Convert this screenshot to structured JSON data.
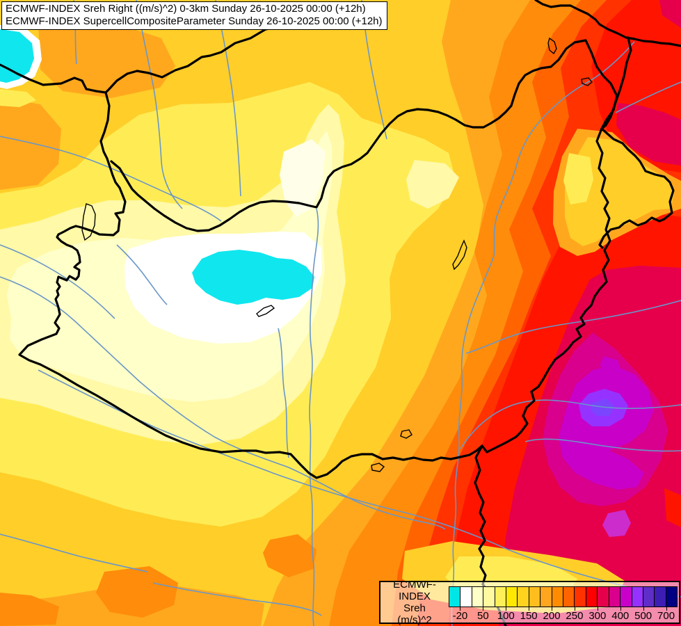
{
  "header": {
    "line1": "ECMWF-INDEX Sreh Right ((m/s)^2) 0-3km Sunday 26-10-2025 00:00 (+12h)",
    "line2": "ECMWF-INDEX SupercellCompositeParameter Sunday 26-10-2025 00:00 (+12h)"
  },
  "legend": {
    "title": "ECMWF-INDEX",
    "parameter": "Sreh",
    "units": "(m/s)^2",
    "tick_labels": [
      "-20",
      "50",
      "100",
      "150",
      "200",
      "250",
      "300",
      "400",
      "500",
      "700"
    ],
    "swatch_colors": [
      "#00E6E6",
      "#FFFFFF",
      "#FFFFC8",
      "#FFF9A0",
      "#FFF05A",
      "#FFE900",
      "#FFD21E",
      "#FFBE1E",
      "#FFA51E",
      "#FF8C00",
      "#FF6400",
      "#FF3200",
      "#FF0000",
      "#E6004B",
      "#D8008C",
      "#C800C8",
      "#9632FF",
      "#5F2DC8",
      "#3C1EB4",
      "#000082"
    ]
  }
}
